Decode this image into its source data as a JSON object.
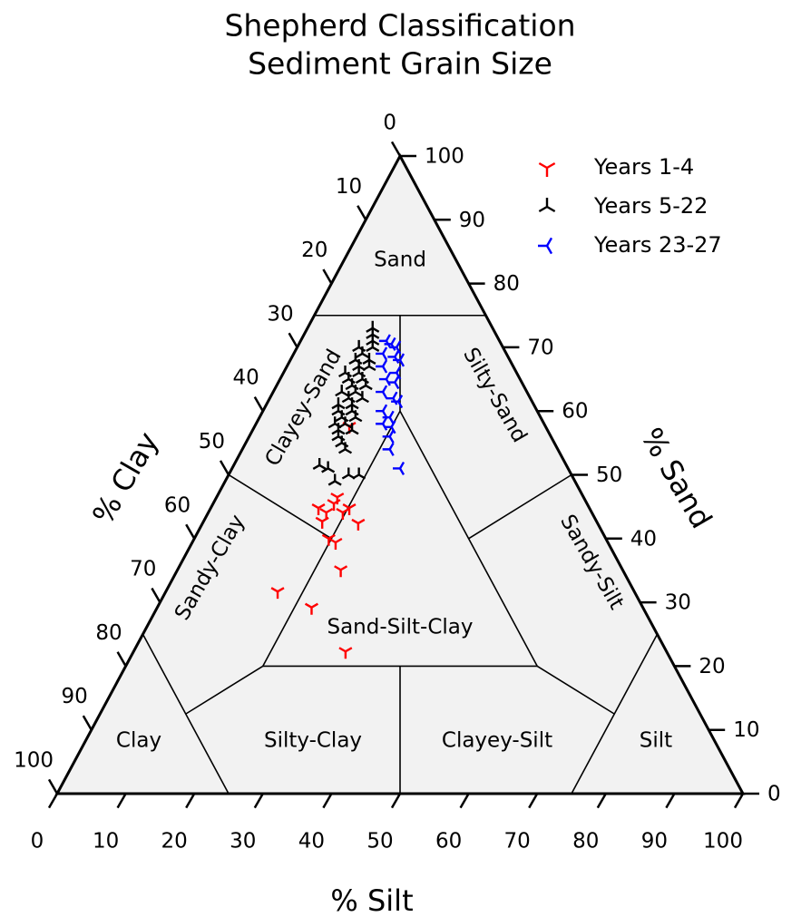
{
  "chart_data": {
    "type": "ternary",
    "title": "Shepherd Classification",
    "subtitle": "Sediment Grain Size",
    "axes": {
      "sand": {
        "label": "% Sand",
        "ticks": [
          0,
          10,
          20,
          30,
          40,
          50,
          60,
          70,
          80,
          90,
          100
        ]
      },
      "silt": {
        "label": "% Silt",
        "ticks": [
          0,
          10,
          20,
          30,
          40,
          50,
          60,
          70,
          80,
          90,
          100
        ]
      },
      "clay": {
        "label": "% Clay",
        "ticks": [
          0,
          10,
          20,
          30,
          40,
          50,
          60,
          70,
          80,
          90,
          100
        ]
      }
    },
    "regions": [
      "Sand",
      "Clayey-Sand",
      "Silty-Sand",
      "Sandy-Clay",
      "Sand-Silt-Clay",
      "Sandy-Silt",
      "Clay",
      "Silty-Clay",
      "Clayey-Silt",
      "Silt"
    ],
    "boundaries": [
      [
        [
          75,
          0,
          25
        ],
        [
          75,
          25,
          0
        ]
      ],
      [
        [
          75,
          12.5,
          12.5
        ],
        [
          60,
          20,
          20
        ]
      ],
      [
        [
          60,
          20,
          20
        ],
        [
          20,
          20,
          60
        ]
      ],
      [
        [
          60,
          20,
          20
        ],
        [
          20,
          60,
          20
        ]
      ],
      [
        [
          20,
          20,
          60
        ],
        [
          20,
          60,
          20
        ]
      ],
      [
        [
          20,
          40,
          40
        ],
        [
          0,
          50,
          50
        ]
      ],
      [
        [
          50,
          0,
          50
        ],
        [
          40,
          20,
          40
        ]
      ],
      [
        [
          50,
          50,
          0
        ],
        [
          40,
          40,
          20
        ]
      ],
      [
        [
          20,
          20,
          60
        ],
        [
          12.5,
          12.5,
          75
        ]
      ],
      [
        [
          20,
          60,
          20
        ],
        [
          12.5,
          75,
          12.5
        ]
      ],
      [
        [
          25,
          0,
          75
        ],
        [
          0,
          25,
          75
        ]
      ],
      [
        [
          25,
          75,
          0
        ],
        [
          0,
          75,
          25
        ]
      ]
    ],
    "series": [
      {
        "name": "Years 1-4",
        "color": "#ff0000",
        "marker": "tri_down",
        "sand": [
          31.7,
          29.2,
          22.3,
          35.1,
          40.0,
          39.4,
          44.8,
          44.1,
          46.5,
          44.1,
          44.8,
          42.4,
          57.6,
          42.7,
          45.5
        ],
        "silt": [
          16.3,
          22.5,
          30.9,
          23.8,
          19.6,
          20.9,
          15.7,
          17.2,
          17.6,
          19.6,
          20.2,
          22.7,
          13.8,
          17.3,
          17.6
        ],
        "clay": [
          52.0,
          48.3,
          46.8,
          41.1,
          40.4,
          39.7,
          39.5,
          38.7,
          35.9,
          36.3,
          35.0,
          34.9,
          28.6,
          40.0,
          36.9
        ]
      },
      {
        "name": "Years 5-22",
        "color": "#000000",
        "marker": "tri_up",
        "sand": [
          73,
          72,
          71,
          70,
          70,
          69,
          68,
          68,
          67,
          67,
          66,
          66,
          65,
          65,
          64,
          64,
          63,
          63,
          62,
          62,
          61,
          61,
          60,
          60,
          59,
          59,
          58,
          58,
          57,
          57,
          56,
          55,
          54,
          51.5,
          51,
          50,
          49,
          50
        ],
        "silt": [
          9.5,
          10,
          10.5,
          9,
          11,
          10,
          11.5,
          9.5,
          10.5,
          12,
          11,
          9,
          12,
          10,
          11,
          13,
          10,
          12,
          11.5,
          13.5,
          10.5,
          12.5,
          11,
          13,
          12,
          14,
          11.5,
          13,
          12.5,
          14.5,
          13,
          14,
          15,
          12.5,
          14,
          17.5,
          16,
          19
        ],
        "clay": [
          17.5,
          18,
          18.5,
          21,
          19,
          21,
          20.5,
          22.5,
          22.5,
          21,
          23,
          25,
          23,
          25,
          25,
          23,
          27,
          25,
          26.5,
          24.5,
          28.5,
          26.5,
          29,
          27,
          29,
          27,
          30.5,
          29,
          30.5,
          28.5,
          31,
          31,
          31,
          36,
          35,
          32.5,
          35,
          31
        ]
      },
      {
        "name": "Years 23-27",
        "color": "#0000ff",
        "marker": "tri_left",
        "sand": [
          71,
          70.5,
          70,
          69,
          68.5,
          68,
          67,
          66,
          65,
          64.5,
          63,
          62,
          61.5,
          60,
          59,
          58,
          57.5,
          56,
          54,
          51
        ],
        "silt": [
          12.5,
          13.5,
          14.5,
          13,
          15,
          16,
          14,
          16.5,
          15.5,
          17,
          16,
          18,
          19,
          17.5,
          19,
          18.5,
          20,
          20.5,
          21.5,
          24.5
        ],
        "clay": [
          16.5,
          16,
          15.5,
          18,
          16.5,
          16,
          19,
          17.5,
          19.5,
          18.5,
          21,
          20,
          19.5,
          22.5,
          22,
          23.5,
          22.5,
          23.5,
          24.5,
          24.5
        ]
      }
    ]
  }
}
